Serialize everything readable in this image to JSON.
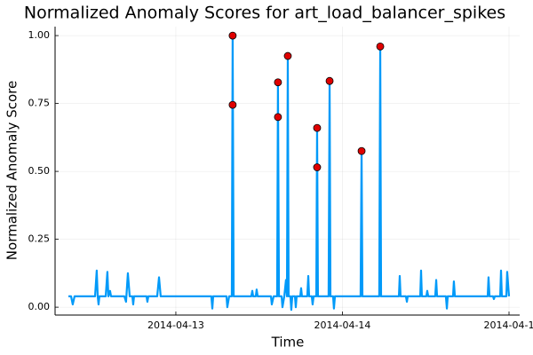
{
  "chart_data": {
    "type": "line",
    "title": "Normalized Anomaly Scores for art_load_balancer_spikes",
    "x_label": "Time",
    "y_label": "Normalized Anomaly Score",
    "xlim": [
      -0.725,
      2.064
    ],
    "ylim": [
      -0.029,
      1.033
    ],
    "xticks": [
      {
        "value": 0,
        "label": "2014-04-13"
      },
      {
        "value": 1,
        "label": "2014-04-14"
      },
      {
        "value": 2,
        "label": "2014-04-1"
      }
    ],
    "yticks": [
      {
        "value": 0,
        "label": "0.00"
      },
      {
        "value": 0.25,
        "label": "0.25"
      },
      {
        "value": 0.5,
        "label": "0.50"
      },
      {
        "value": 0.75,
        "label": "0.75"
      },
      {
        "value": 1,
        "label": "1.00"
      }
    ],
    "grid": true,
    "series": [
      {
        "type": "line",
        "color": "#009af9",
        "x": [
          -0.645,
          -0.629,
          -0.619,
          -0.608,
          -0.485,
          -0.475,
          -0.469,
          -0.464,
          -0.459,
          -0.421,
          -0.411,
          -0.405,
          -0.395,
          -0.389,
          -0.309,
          -0.299,
          -0.288,
          -0.277,
          -0.261,
          -0.256,
          -0.251,
          -0.176,
          -0.171,
          -0.165,
          -0.112,
          -0.101,
          -0.091,
          0.213,
          0.219,
          0.224,
          0.304,
          0.309,
          0.32,
          0.336,
          0.341,
          0.347,
          0.453,
          0.459,
          0.464,
          0.48,
          0.485,
          0.491,
          0.571,
          0.576,
          0.587,
          0.608,
          0.613,
          0.619,
          0.635,
          0.64,
          0.651,
          0.661,
          0.667,
          0.672,
          0.677,
          0.688,
          0.693,
          0.699,
          0.715,
          0.72,
          0.725,
          0.747,
          0.752,
          0.757,
          0.789,
          0.795,
          0.8,
          0.816,
          0.821,
          0.827,
          0.843,
          0.848,
          0.853,
          0.917,
          0.923,
          0.928,
          0.944,
          0.949,
          0.955,
          1.109,
          1.115,
          1.12,
          1.221,
          1.227,
          1.232,
          1.339,
          1.344,
          1.349,
          1.381,
          1.387,
          1.392,
          1.467,
          1.472,
          1.477,
          1.504,
          1.509,
          1.515,
          1.557,
          1.563,
          1.568,
          1.621,
          1.627,
          1.632,
          1.664,
          1.669,
          1.675,
          1.872,
          1.877,
          1.883,
          1.904,
          1.909,
          1.915,
          1.947,
          1.952,
          1.957,
          1.984,
          1.989,
          2.0
        ],
        "values": [
          0.04,
          0.04,
          0.01,
          0.04,
          0.04,
          0.135,
          0.04,
          0.01,
          0.04,
          0.04,
          0.13,
          0.04,
          0.06,
          0.04,
          0.04,
          0.02,
          0.125,
          0.04,
          0.04,
          0.01,
          0.04,
          0.04,
          0.02,
          0.04,
          0.04,
          0.11,
          0.04,
          0.04,
          -0.005,
          0.04,
          0.04,
          0,
          0.04,
          0.04,
          1.0,
          0.04,
          0.04,
          0.06,
          0.04,
          0.04,
          0.065,
          0.04,
          0.04,
          0.01,
          0.04,
          0.04,
          0.828,
          0.04,
          0.04,
          0,
          0.04,
          0.1,
          0.04,
          0.925,
          0.04,
          0.04,
          -0.01,
          0.04,
          0.04,
          0,
          0.04,
          0.04,
          0.07,
          0.04,
          0.04,
          0.115,
          0.04,
          0.04,
          0.01,
          0.04,
          0.04,
          0.66,
          0.04,
          0.04,
          0.833,
          0.04,
          0.04,
          -0.005,
          0.04,
          0.04,
          0.575,
          0.04,
          0.04,
          0.96,
          0.04,
          0.04,
          0.115,
          0.04,
          0.04,
          0.02,
          0.04,
          0.04,
          0.135,
          0.04,
          0.04,
          0.06,
          0.04,
          0.04,
          0.1,
          0.04,
          0.04,
          -0.005,
          0.04,
          0.04,
          0.095,
          0.04,
          0.04,
          0.11,
          0.04,
          0.04,
          0.03,
          0.04,
          0.04,
          0.135,
          0.04,
          0.04,
          0.13,
          0.04
        ]
      },
      {
        "type": "scatter",
        "color": "#e00000",
        "x": [
          0.341,
          0.341,
          0.613,
          0.613,
          0.672,
          0.848,
          0.848,
          0.923,
          1.115,
          1.227
        ],
        "values": [
          1.0,
          0.745,
          0.828,
          0.7,
          0.925,
          0.66,
          0.515,
          0.833,
          0.575,
          0.96
        ]
      }
    ]
  }
}
